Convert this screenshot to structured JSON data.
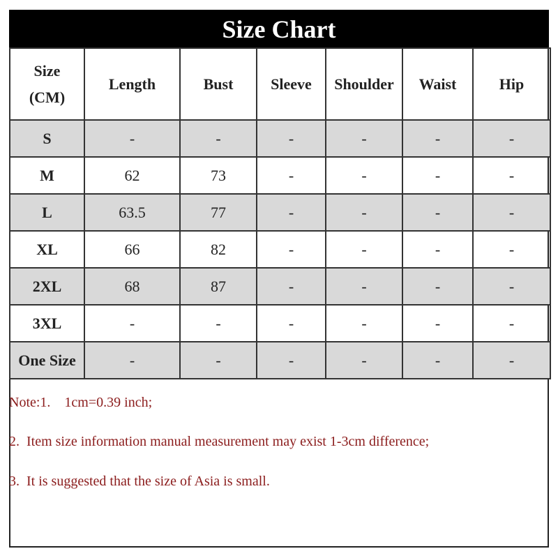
{
  "title": "Size Chart",
  "columns": [
    "Size\n(CM)",
    "Length",
    "Bust",
    "Sleeve",
    "Shoulder",
    "Waist",
    "Hip"
  ],
  "rows": [
    [
      "S",
      "-",
      "-",
      "-",
      "-",
      "-",
      "-"
    ],
    [
      "M",
      "62",
      "73",
      "-",
      "-",
      "-",
      "-"
    ],
    [
      "L",
      "63.5",
      "77",
      "-",
      "-",
      "-",
      "-"
    ],
    [
      "XL",
      "66",
      "82",
      "-",
      "-",
      "-",
      "-"
    ],
    [
      "2XL",
      "68",
      "87",
      "-",
      "-",
      "-",
      "-"
    ],
    [
      "3XL",
      "-",
      "-",
      "-",
      "-",
      "-",
      "-"
    ],
    [
      "One Size",
      "-",
      "-",
      "-",
      "-",
      "-",
      "-"
    ]
  ],
  "shaded_rows": [
    "S",
    "L",
    "2XL",
    "One Size"
  ],
  "colors": {
    "header_bg": "#000000",
    "row_shade": "#d9d9d9",
    "note_text": "#8b1c1c"
  },
  "notes": [
    "Note:1.    1cm=0.39 inch;",
    "2.  Item size information manual measurement may exist 1-3cm difference;",
    "3.  It is suggested that the size of Asia is small."
  ]
}
